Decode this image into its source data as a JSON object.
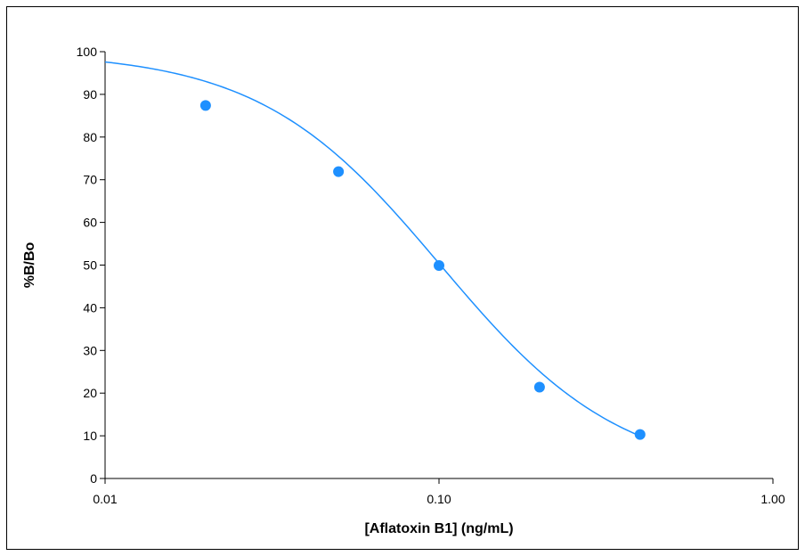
{
  "chart_data": {
    "type": "scatter",
    "title": "",
    "xlabel": "[Aflatoxin B1] (ng/mL)",
    "ylabel": "%B/Bo",
    "xscale": "log",
    "xlim": [
      0.01,
      1.0
    ],
    "ylim": [
      0,
      100
    ],
    "x_ticks": [
      0.01,
      0.1,
      1.0
    ],
    "x_tick_labels": [
      "0.01",
      "0.10",
      "1.00"
    ],
    "y_ticks": [
      0,
      10,
      20,
      30,
      40,
      50,
      60,
      70,
      80,
      90,
      100
    ],
    "y_tick_labels": [
      "0",
      "10",
      "20",
      "30",
      "40",
      "50",
      "60",
      "70",
      "80",
      "90",
      "100"
    ],
    "grid": false,
    "series": [
      {
        "x": [
          0.02,
          0.05,
          0.1,
          0.2,
          0.4
        ],
        "y": [
          87.4,
          71.9,
          49.9,
          21.4,
          10.3
        ],
        "color": "#1e90ff",
        "marker": "circle"
      }
    ],
    "fit_curve": {
      "type": "4-parameter logistic",
      "color": "#1e90ff",
      "x_range": [
        0.01,
        0.4
      ],
      "params": {
        "top": 100,
        "bottom": 0,
        "ec50": 0.101,
        "hill": 1.6
      }
    }
  }
}
